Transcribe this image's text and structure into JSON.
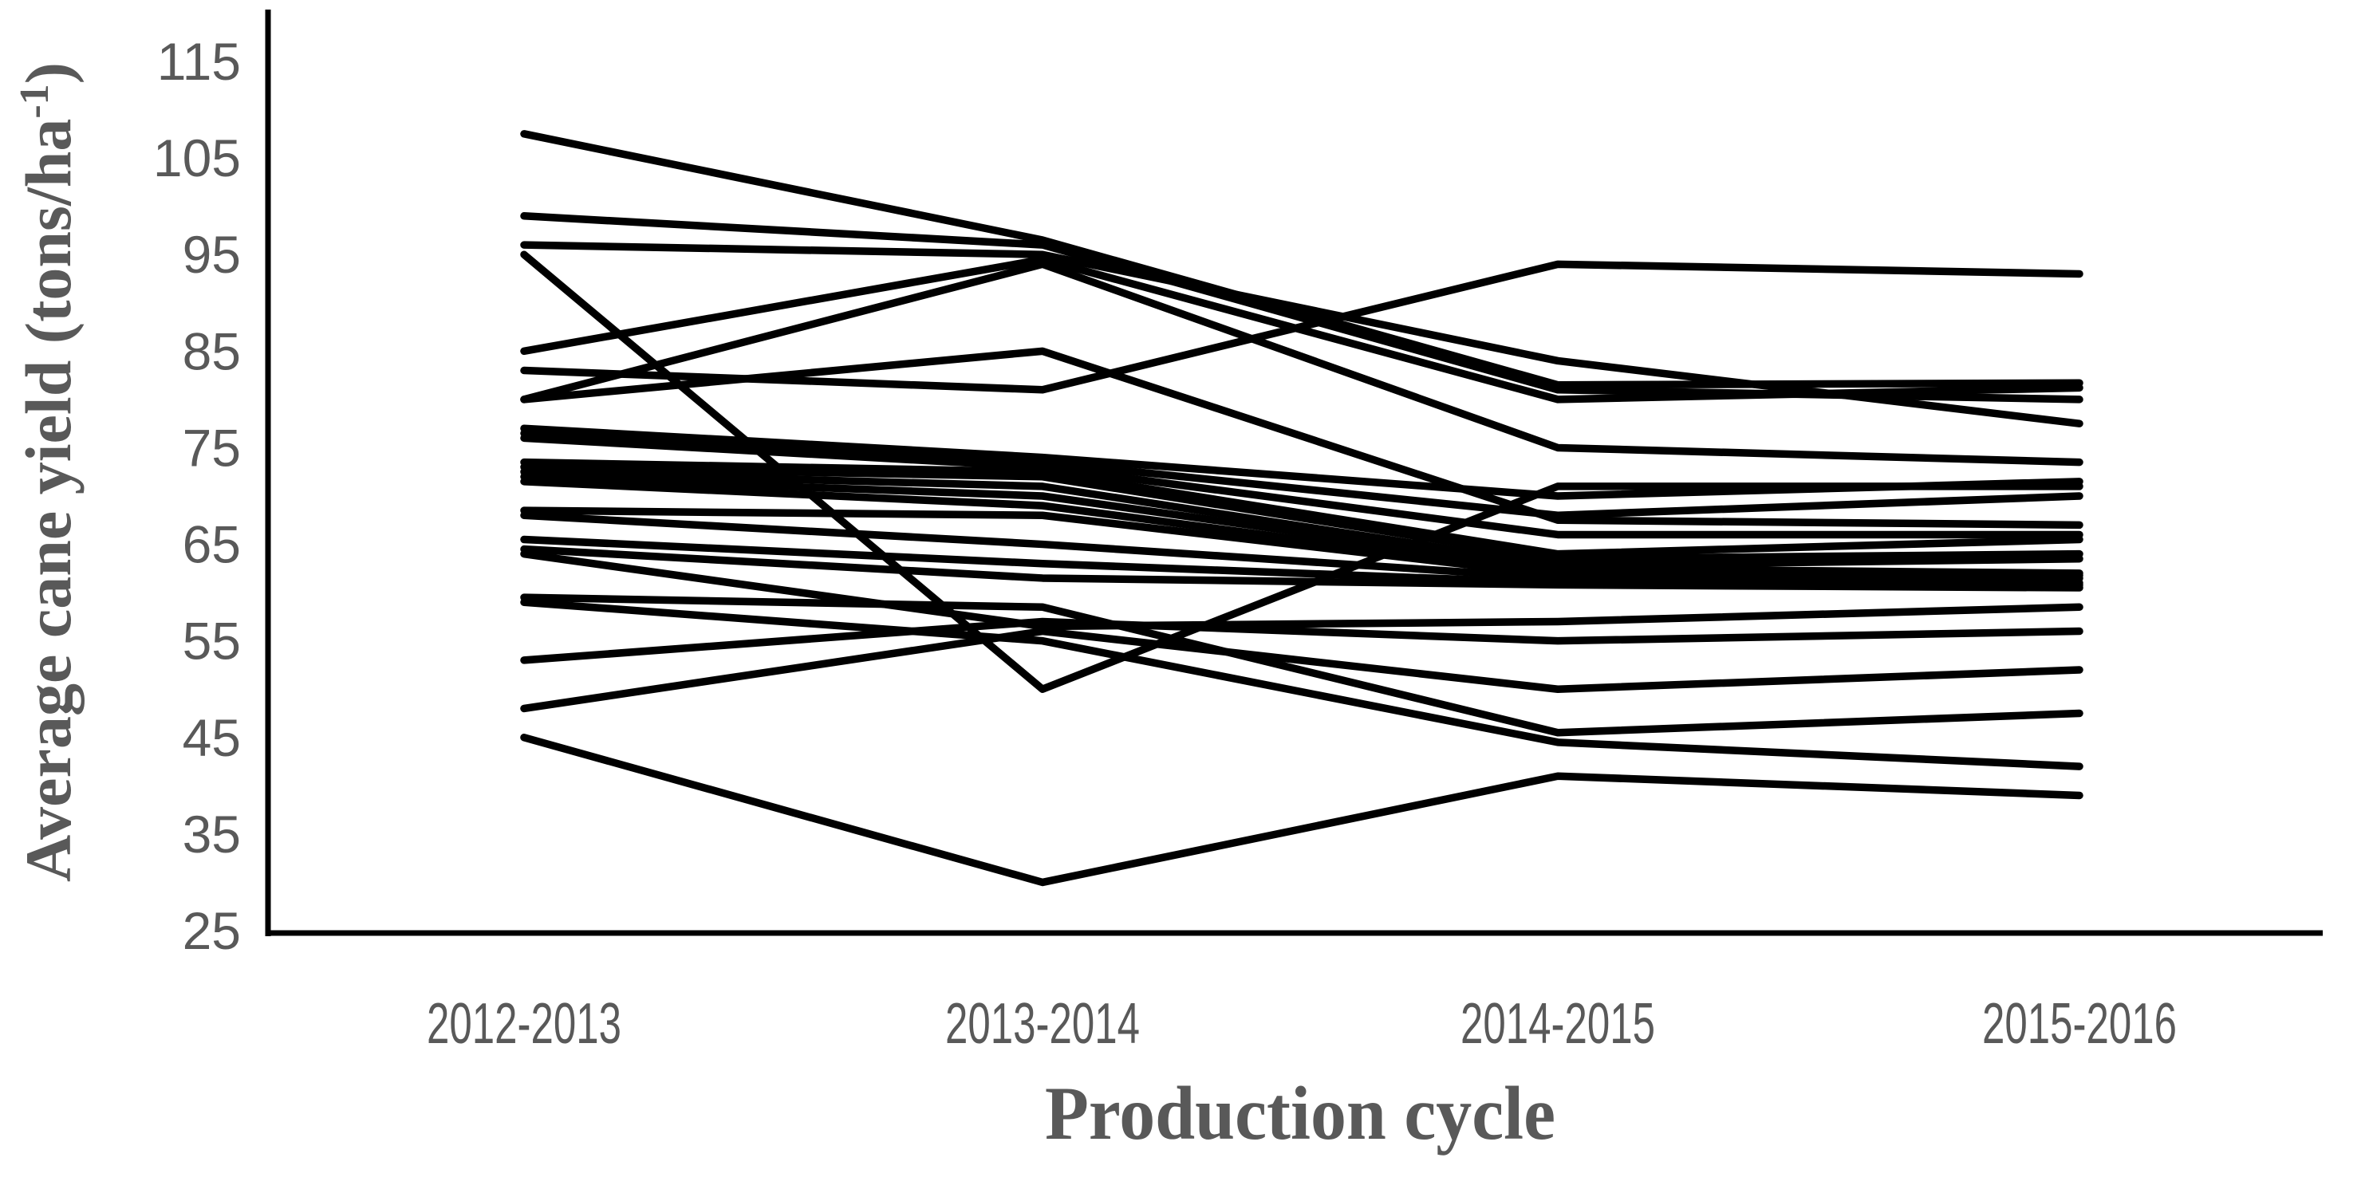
{
  "page": {
    "background_color": "#ffffff"
  },
  "chart_data": {
    "type": "line",
    "title": "",
    "xlabel": "Production cycle",
    "ylabel": {
      "prefix": "Average cane yield (tons/ha",
      "superscript": "-1",
      "suffix": ")"
    },
    "categories": [
      "2012-2013",
      "2013-2014",
      "2014-2015",
      "2015-2016"
    ],
    "ylim": [
      25,
      115
    ],
    "ytick_step": 10,
    "yticks": [
      115,
      105,
      95,
      85,
      75,
      65,
      55,
      45,
      35,
      25
    ],
    "grid": false,
    "legend": "none",
    "line_color": "#000000",
    "axis_color": "#000000",
    "text_color": "#595959",
    "series": [
      {
        "name": "",
        "values": [
          107.5,
          96.5,
          81.5,
          81.7
        ]
      },
      {
        "name": "",
        "values": [
          99,
          96,
          81,
          80
        ]
      },
      {
        "name": "",
        "values": [
          96,
          95,
          84,
          77.5
        ]
      },
      {
        "name": "",
        "values": [
          85,
          94.5,
          80,
          81.2
        ]
      },
      {
        "name": "",
        "values": [
          80,
          94,
          75,
          73.5
        ]
      },
      {
        "name": "",
        "values": [
          83,
          81,
          94,
          93
        ]
      },
      {
        "name": "",
        "values": [
          95,
          50,
          71,
          71
        ]
      },
      {
        "name": "",
        "values": [
          80,
          85,
          67.5,
          67
        ]
      },
      {
        "name": "",
        "values": [
          77,
          74,
          70,
          71.5
        ]
      },
      {
        "name": "",
        "values": [
          76.5,
          73.5,
          68,
          70
        ]
      },
      {
        "name": "",
        "values": [
          76,
          73,
          66,
          66
        ]
      },
      {
        "name": "",
        "values": [
          73.5,
          72.5,
          64,
          65.5
        ]
      },
      {
        "name": "",
        "values": [
          73,
          72,
          63.5,
          64
        ]
      },
      {
        "name": "",
        "values": [
          72.5,
          71,
          62.8,
          63.5
        ]
      },
      {
        "name": "",
        "values": [
          72,
          70,
          62.5,
          62
        ]
      },
      {
        "name": "",
        "values": [
          71.5,
          69,
          62,
          61.8
        ]
      },
      {
        "name": "",
        "values": [
          68.5,
          68,
          61.8,
          61.5
        ]
      },
      {
        "name": "",
        "values": [
          68,
          65,
          61.5,
          61
        ]
      },
      {
        "name": "",
        "values": [
          65.5,
          63,
          61,
          60.8
        ]
      },
      {
        "name": "",
        "values": [
          64.5,
          61.5,
          60.8,
          60.5
        ]
      },
      {
        "name": "",
        "values": [
          64,
          56.5,
          57,
          58.5
        ]
      },
      {
        "name": "",
        "values": [
          59.5,
          58.5,
          45.5,
          47.5
        ]
      },
      {
        "name": "",
        "values": [
          59,
          55,
          44.5,
          42
        ]
      },
      {
        "name": "",
        "values": [
          53,
          57,
          55,
          56
        ]
      },
      {
        "name": "",
        "values": [
          48,
          56,
          50,
          52
        ]
      },
      {
        "name": "",
        "values": [
          45,
          30,
          41,
          39
        ]
      }
    ]
  }
}
